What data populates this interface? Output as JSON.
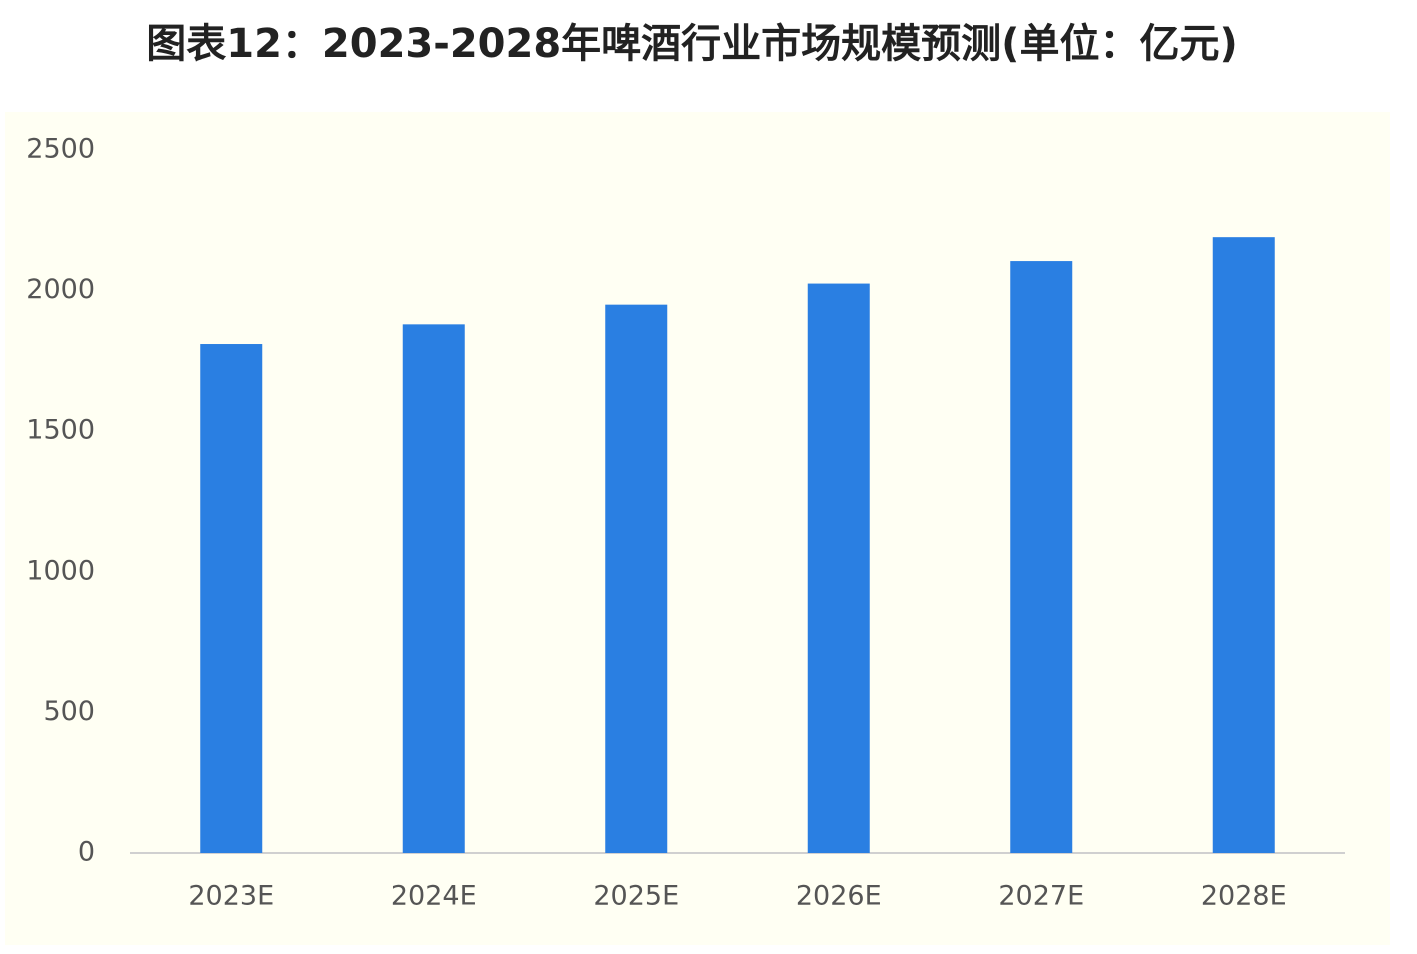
{
  "chart_data": {
    "type": "bar",
    "title": "图表12：2023-2028年啤酒行业市场规模预测(单位：亿元)",
    "categories": [
      "2023E",
      "2024E",
      "2025E",
      "2026E",
      "2027E",
      "2028E"
    ],
    "values": [
      1810,
      1880,
      1950,
      2025,
      2105,
      2190
    ],
    "color": "#2a7fe2",
    "ylim": [
      0,
      2500
    ],
    "yticks": [
      0,
      500,
      1000,
      1500,
      2000,
      2500
    ],
    "grid": false
  }
}
